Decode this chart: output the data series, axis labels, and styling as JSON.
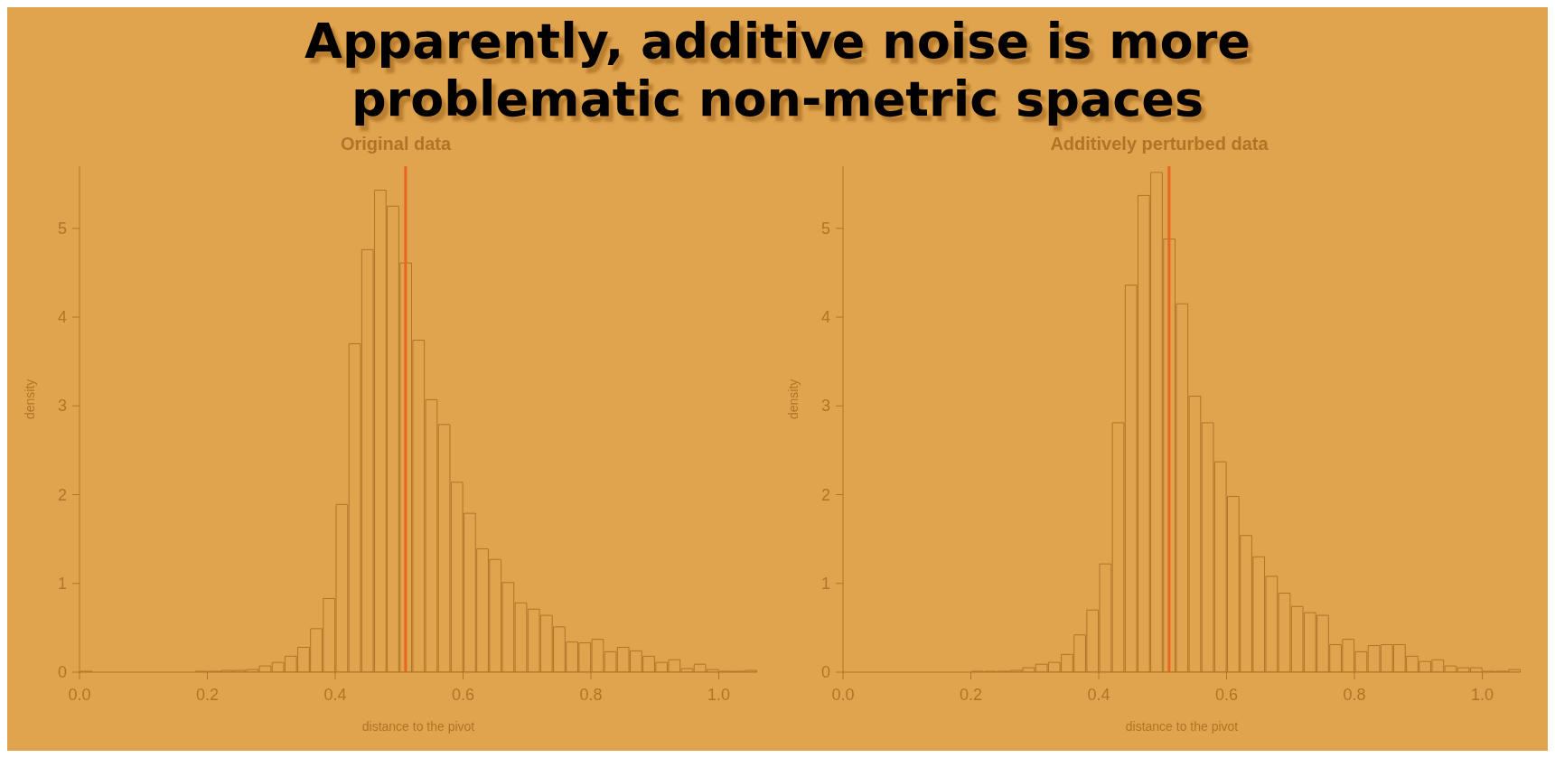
{
  "chart_data": [
    {
      "type": "histogram",
      "title": "Original data",
      "xlabel": "distance to the pivot",
      "ylabel": "density",
      "color": "#b07428",
      "bins": [
        0,
        0.02,
        0.04,
        0.06,
        0.08,
        0.1,
        0.12,
        0.14,
        0.16,
        0.18,
        0.2,
        0.22,
        0.24,
        0.26,
        0.28,
        0.3,
        0.32,
        0.34,
        0.36,
        0.38,
        0.4,
        0.42,
        0.44,
        0.46,
        0.48,
        0.5,
        0.52,
        0.54,
        0.56,
        0.58,
        0.6,
        0.62,
        0.64,
        0.66,
        0.68,
        0.7,
        0.72,
        0.74,
        0.76,
        0.78,
        0.8,
        0.82,
        0.84,
        0.86,
        0.88,
        0.9,
        0.92,
        0.94,
        0.96,
        0.98,
        1,
        1.02,
        1.04,
        1.06
      ],
      "values": [
        0.01,
        0,
        0,
        0,
        0,
        0,
        0,
        0,
        0,
        0.01,
        0.01,
        0.02,
        0.02,
        0.03,
        0.07,
        0.11,
        0.18,
        0.28,
        0.49,
        0.83,
        1.89,
        3.7,
        4.76,
        5.43,
        5.25,
        4.61,
        3.74,
        3.07,
        2.79,
        2.14,
        1.79,
        1.39,
        1.27,
        1.01,
        0.78,
        0.71,
        0.64,
        0.51,
        0.34,
        0.33,
        0.37,
        0.23,
        0.28,
        0.24,
        0.18,
        0.11,
        0.14,
        0.04,
        0.09,
        0.03,
        0.01,
        0.01,
        0.02
      ],
      "xlim": [
        0,
        1.06
      ],
      "xticks": [
        {
          "value": 0,
          "label": "0.0"
        },
        {
          "value": 0.2,
          "label": "0.2"
        },
        {
          "value": 0.4,
          "label": "0.4"
        },
        {
          "value": 0.6,
          "label": "0.6"
        },
        {
          "value": 0.8,
          "label": "0.8"
        },
        {
          "value": 1,
          "label": "1.0"
        }
      ],
      "ylim": [
        0,
        5.7
      ],
      "yticks": [
        0,
        1,
        2,
        3,
        4,
        5
      ],
      "ref_lines": [
        {
          "axis": "x",
          "value": 0.51,
          "color": "#e8661f"
        }
      ]
    },
    {
      "type": "histogram",
      "title": "Additively perturbed data",
      "xlabel": "distance to the pivot",
      "ylabel": "density",
      "color": "#b07428",
      "bins": [
        0.2,
        0.22,
        0.24,
        0.26,
        0.28,
        0.3,
        0.32,
        0.34,
        0.36,
        0.38,
        0.4,
        0.42,
        0.44,
        0.46,
        0.48,
        0.5,
        0.52,
        0.54,
        0.56,
        0.58,
        0.6,
        0.62,
        0.64,
        0.66,
        0.68,
        0.7,
        0.72,
        0.74,
        0.76,
        0.78,
        0.8,
        0.82,
        0.84,
        0.86,
        0.88,
        0.9,
        0.92,
        0.94,
        0.96,
        0.98,
        1,
        1.02,
        1.04,
        1.06
      ],
      "values": [
        0.01,
        0.01,
        0.01,
        0.02,
        0.05,
        0.09,
        0.11,
        0.2,
        0.42,
        0.7,
        1.22,
        2.81,
        4.36,
        5.37,
        5.63,
        4.88,
        4.15,
        3.11,
        2.81,
        2.37,
        1.98,
        1.54,
        1.3,
        1.08,
        0.89,
        0.74,
        0.67,
        0.64,
        0.31,
        0.37,
        0.23,
        0.3,
        0.31,
        0.31,
        0.18,
        0.12,
        0.14,
        0.07,
        0.05,
        0.05,
        0.01,
        0.01,
        0.03
      ],
      "xlim": [
        0,
        1.06
      ],
      "xticks": [
        {
          "value": 0,
          "label": "0.0"
        },
        {
          "value": 0.2,
          "label": "0.2"
        },
        {
          "value": 0.4,
          "label": "0.4"
        },
        {
          "value": 0.6,
          "label": "0.6"
        },
        {
          "value": 0.8,
          "label": "0.8"
        },
        {
          "value": 1,
          "label": "1.0"
        }
      ],
      "ylim": [
        0,
        5.7
      ],
      "yticks": [
        0,
        1,
        2,
        3,
        4,
        5
      ],
      "ref_lines": [
        {
          "axis": "x",
          "value": 0.51,
          "color": "#e8661f"
        }
      ]
    },
    {
      "type": "other",
      "title": "Apparently, additive noise is more problematic non-metric spaces"
    }
  ]
}
